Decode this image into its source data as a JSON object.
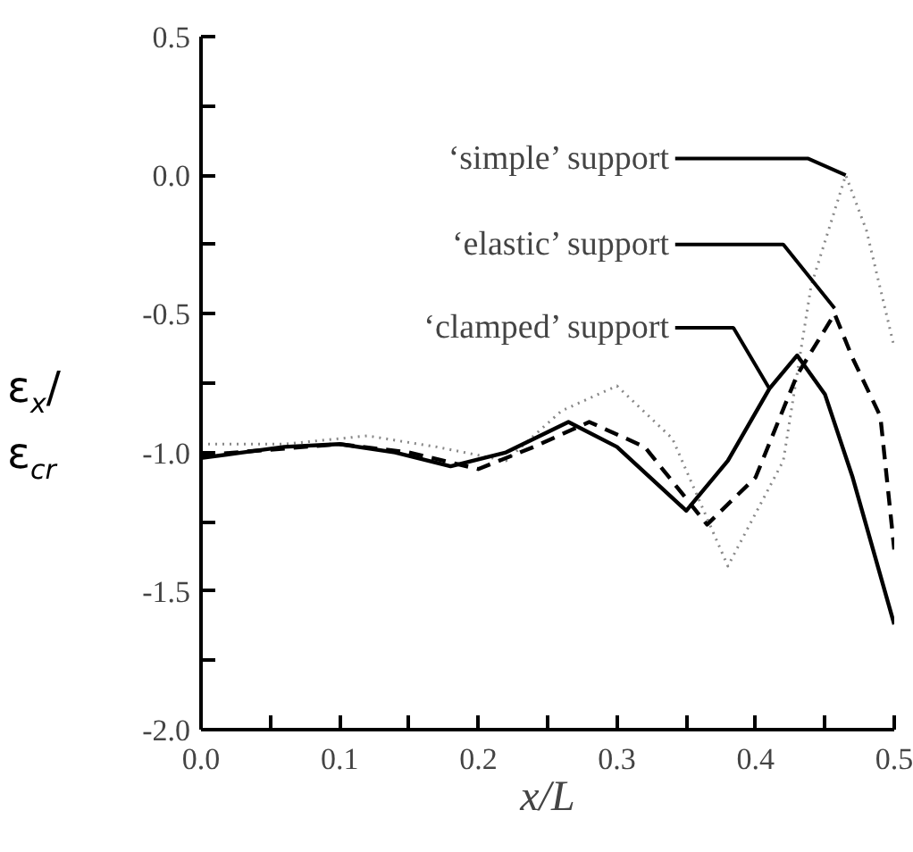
{
  "chart_data": {
    "type": "line",
    "xlabel": "x/L",
    "ylabel": "ε$_{x}$/ε$_{cr}$",
    "xlim": [
      0,
      0.5
    ],
    "ylim": [
      -2.0,
      0.5
    ],
    "xticks": [
      {
        "value": 0,
        "label": "0.0"
      },
      {
        "value": 0.05,
        "label": null
      },
      0.1,
      {
        "value": 0.15,
        "label": null
      },
      0.2,
      {
        "value": 0.25,
        "label": null
      },
      0.3,
      {
        "value": 0.35,
        "label": null
      },
      0.4,
      {
        "value": 0.45,
        "label": null
      },
      0.5
    ],
    "yticks": [
      {
        "value": -2.0,
        "label": "-2.0"
      },
      {
        "value": -1.75,
        "label": null
      },
      -1.5,
      {
        "value": -1.25,
        "label": null
      },
      {
        "value": -1.0,
        "label": "-1.0"
      },
      {
        "value": -0.75,
        "label": null
      },
      -0.5,
      {
        "value": -0.25,
        "label": null
      },
      {
        "value": 0,
        "label": "0.0"
      },
      {
        "value": 0.25,
        "label": null
      },
      0.5
    ],
    "grid": false,
    "marker": "none",
    "series": [
      {
        "color": "#888888",
        "line_style": "dotted",
        "x": [
          0,
          0.06,
          0.12,
          0.17,
          0.22,
          0.26,
          0.3,
          0.34,
          0.38,
          0.42,
          0.44,
          0.465,
          0.48,
          0.5
        ],
        "values": [
          -0.97,
          -0.97,
          -0.94,
          -0.98,
          -1.03,
          -0.85,
          -0.76,
          -0.95,
          -1.41,
          -1.03,
          -0.4,
          0.0,
          -0.2,
          -0.62
        ]
      },
      {
        "color": "#000000",
        "line_style": "dashed",
        "x": [
          0,
          0.05,
          0.1,
          0.15,
          0.2,
          0.24,
          0.28,
          0.32,
          0.365,
          0.4,
          0.43,
          0.457,
          0.47,
          0.49,
          0.5
        ],
        "values": [
          -1.01,
          -0.99,
          -0.97,
          -1.0,
          -1.06,
          -0.98,
          -0.89,
          -0.98,
          -1.26,
          -1.09,
          -0.72,
          -0.5,
          -0.66,
          -0.87,
          -1.35
        ]
      },
      {
        "color": "#000000",
        "line_style": "solid",
        "x": [
          0,
          0.03,
          0.06,
          0.1,
          0.14,
          0.18,
          0.22,
          0.265,
          0.3,
          0.35,
          0.38,
          0.41,
          0.43,
          0.45,
          0.47,
          0.5
        ],
        "values": [
          -1.02,
          -1.0,
          -0.98,
          -0.97,
          -1.0,
          -1.05,
          -1.0,
          -0.89,
          -0.98,
          -1.21,
          -1.03,
          -0.77,
          -0.65,
          -0.79,
          -1.09,
          -1.62
        ]
      }
    ],
    "annotations": [
      {
        "text": "‘simple’ support",
        "x": 0.465,
        "y": 0.0
      },
      {
        "text": "‘elastic’ support",
        "x": 0.457,
        "y": -0.48
      },
      {
        "text": "‘clamped’ support",
        "x": 0.41,
        "y": -0.77
      }
    ]
  }
}
